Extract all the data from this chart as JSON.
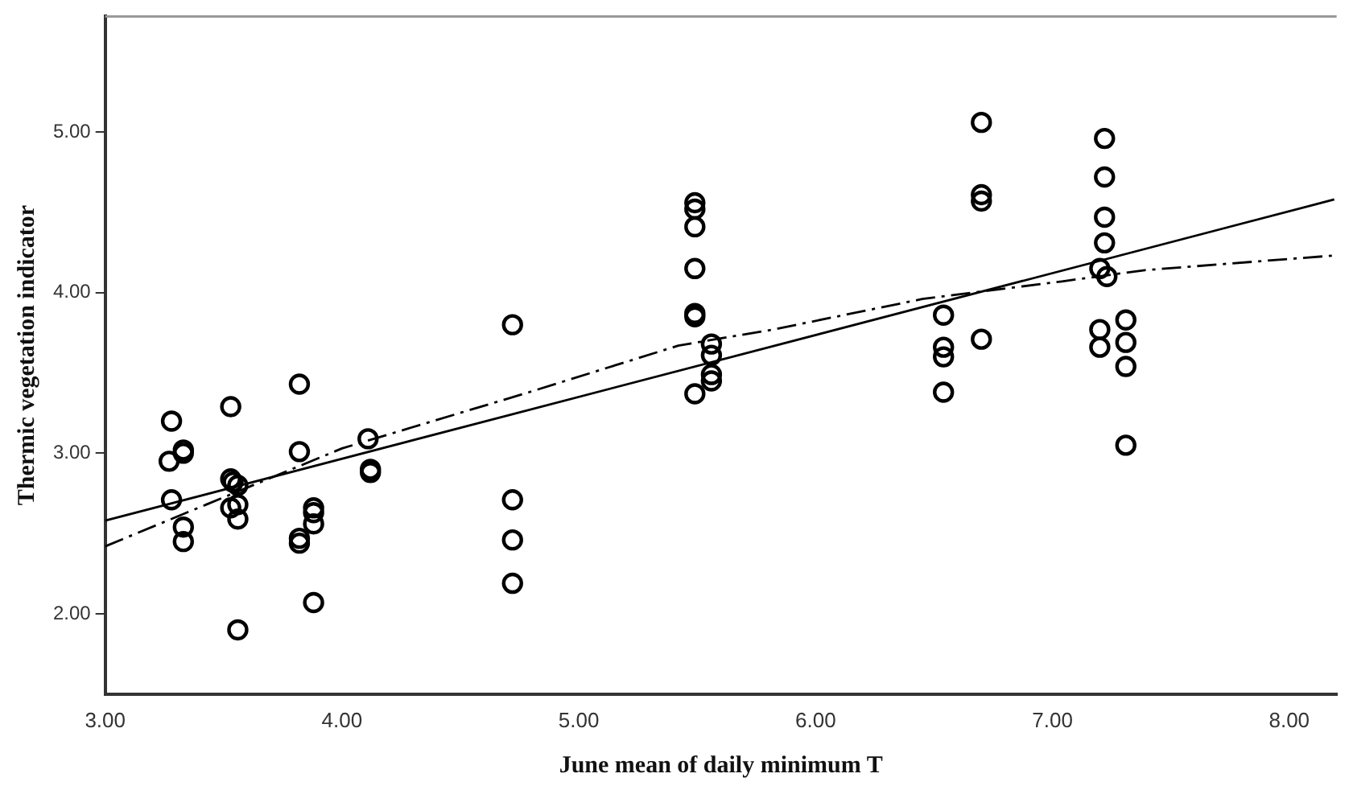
{
  "chart_data": {
    "type": "scatter",
    "xlabel": "June mean of daily minimum T",
    "ylabel": "Thermic vegetation indicator",
    "xlim": [
      3,
      8.2
    ],
    "xticks": [
      {
        "value": 3,
        "label": "3.00"
      },
      {
        "value": 4,
        "label": "4.00"
      },
      {
        "value": 5,
        "label": "5.00"
      },
      {
        "value": 6,
        "label": "6.00"
      },
      {
        "value": 7,
        "label": "7.00"
      },
      {
        "value": 8,
        "label": "8.00"
      }
    ],
    "ylim": [
      1.5,
      5.72
    ],
    "yticks": [
      {
        "value": 2,
        "label": "2.00"
      },
      {
        "value": 3,
        "label": "3.00"
      },
      {
        "value": 4,
        "label": "4.00"
      },
      {
        "value": 5,
        "label": "5.00"
      }
    ],
    "grid": false,
    "legend": false,
    "marker": "circle",
    "series": [
      {
        "type": "scatter",
        "color": "#000000",
        "x": [
          3.28,
          3.27,
          3.33,
          3.33,
          3.28,
          3.33,
          3.33,
          3.53,
          3.53,
          3.54,
          3.56,
          3.53,
          3.56,
          3.56,
          3.56,
          3.82,
          3.82,
          3.82,
          3.82,
          3.88,
          3.88,
          3.88,
          3.88,
          4.11,
          4.12,
          4.12,
          4.72,
          4.72,
          4.72,
          4.72,
          5.49,
          5.49,
          5.49,
          5.49,
          5.49,
          5.49,
          5.56,
          5.56,
          5.56,
          5.56,
          5.49,
          6.54,
          6.54,
          6.54,
          6.54,
          6.7,
          6.7,
          6.7,
          6.7,
          7.22,
          7.22,
          7.22,
          7.22,
          7.2,
          7.23,
          7.2,
          7.2,
          7.31,
          7.31,
          7.31,
          7.31
        ],
        "values": [
          3.2,
          2.95,
          3.02,
          3.0,
          2.71,
          2.54,
          2.45,
          3.29,
          2.84,
          2.82,
          2.8,
          2.66,
          2.68,
          2.59,
          1.9,
          3.43,
          3.01,
          2.47,
          2.44,
          2.66,
          2.63,
          2.56,
          2.07,
          3.09,
          2.9,
          2.88,
          3.8,
          2.71,
          2.46,
          2.19,
          4.56,
          4.52,
          4.41,
          4.15,
          3.87,
          3.85,
          3.68,
          3.61,
          3.49,
          3.45,
          3.37,
          3.86,
          3.66,
          3.6,
          3.38,
          5.06,
          4.61,
          4.57,
          3.71,
          4.96,
          4.72,
          4.47,
          4.31,
          4.15,
          4.1,
          3.77,
          3.66,
          3.83,
          3.69,
          3.54,
          3.05
        ]
      },
      {
        "type": "line",
        "color": "#000000",
        "marker": "none",
        "line_style": "solid",
        "x": [
          3,
          8.19
        ],
        "values": [
          2.58,
          4.58
        ]
      },
      {
        "type": "line",
        "color": "#000000",
        "marker": "none",
        "line_style": "dashed",
        "x": [
          3,
          4,
          4.79,
          5.42,
          5.82,
          6.45,
          7.04,
          7.39,
          7.74,
          8.18
        ],
        "values": [
          2.42,
          3.03,
          3.38,
          3.67,
          3.77,
          3.96,
          4.07,
          4.14,
          4.18,
          4.23
        ]
      }
    ]
  }
}
